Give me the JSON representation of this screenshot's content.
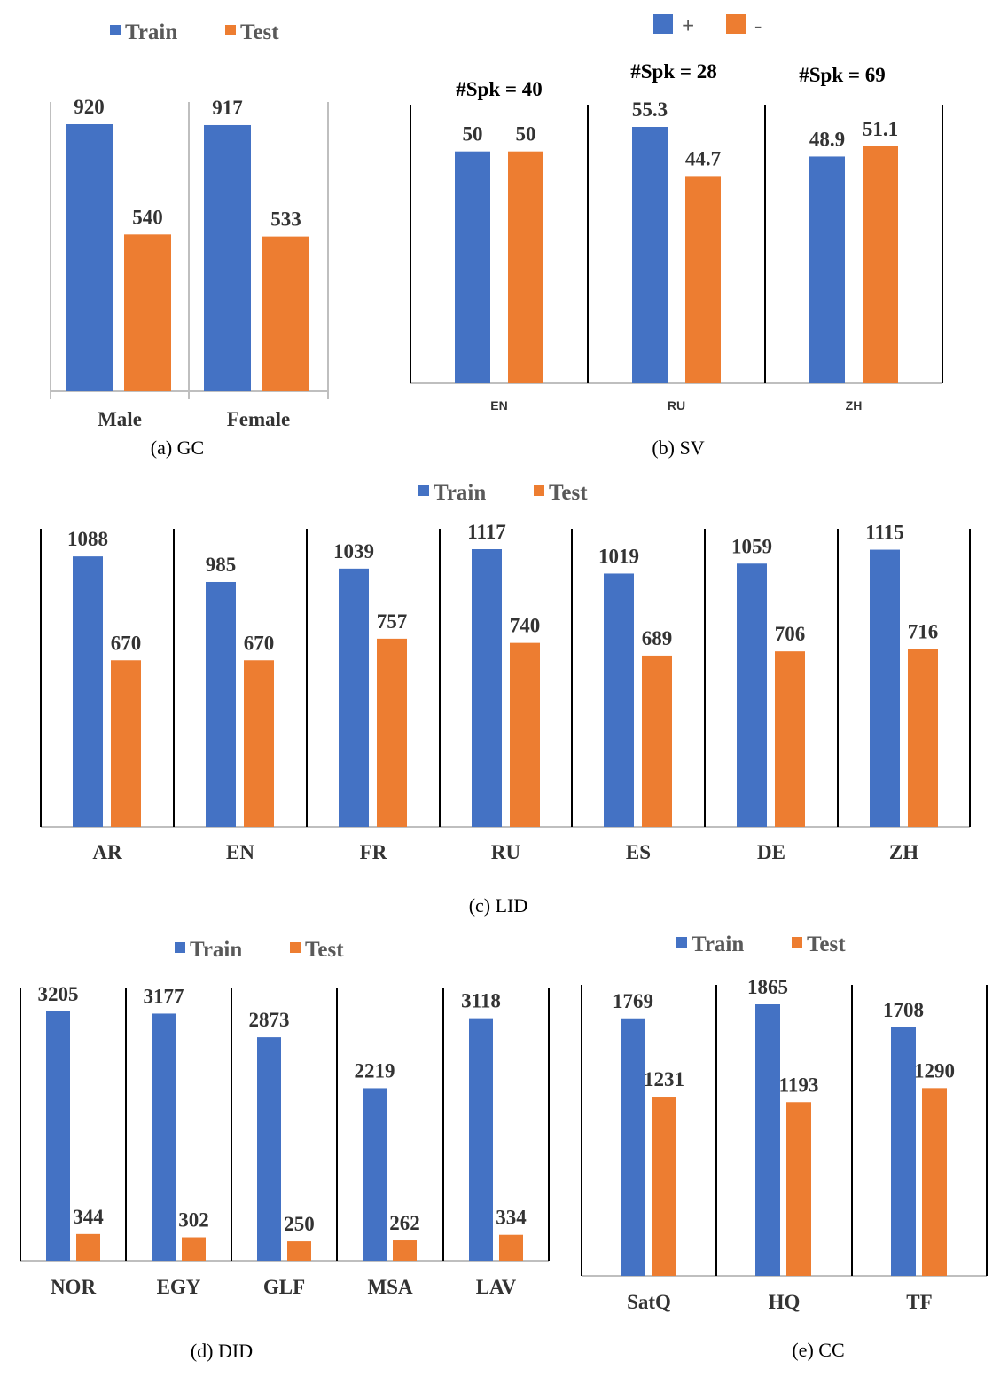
{
  "colors": {
    "train": "#4472C4",
    "test": "#ED7D31",
    "axis": "#000000",
    "text": "#333333"
  },
  "chart_data": [
    {
      "id": "gc",
      "type": "bar",
      "caption": "(a) GC",
      "legend": [
        "Train",
        "Test"
      ],
      "categories": [
        "Male",
        "Female"
      ],
      "series": [
        {
          "name": "Train",
          "values": [
            920,
            917
          ]
        },
        {
          "name": "Test",
          "values": [
            540,
            533
          ]
        }
      ],
      "ylim": [
        0,
        920
      ]
    },
    {
      "id": "sv",
      "type": "bar",
      "caption": "(b) SV",
      "legend": [
        "+",
        "-"
      ],
      "categories": [
        "EN",
        "RU",
        "ZH"
      ],
      "annotations": [
        "#Spk = 40",
        "#Spk = 28",
        "#Spk = 69"
      ],
      "series": [
        {
          "name": "+",
          "values": [
            50,
            55.3,
            48.9
          ]
        },
        {
          "name": "-",
          "values": [
            50,
            44.7,
            51.1
          ]
        }
      ],
      "ylim": [
        0,
        55.3
      ]
    },
    {
      "id": "lid",
      "type": "bar",
      "caption": "(c) LID",
      "legend": [
        "Train",
        "Test"
      ],
      "categories": [
        "AR",
        "EN",
        "FR",
        "RU",
        "ES",
        "DE",
        "ZH"
      ],
      "series": [
        {
          "name": "Train",
          "values": [
            1088,
            985,
            1039,
            1117,
            1019,
            1059,
            1115
          ]
        },
        {
          "name": "Test",
          "values": [
            670,
            670,
            757,
            740,
            689,
            706,
            716
          ]
        }
      ],
      "ylim": [
        0,
        1117
      ]
    },
    {
      "id": "did",
      "type": "bar",
      "caption": "(d) DID",
      "legend": [
        "Train",
        "Test"
      ],
      "categories": [
        "NOR",
        "EGY",
        "GLF",
        "MSA",
        "LAV"
      ],
      "series": [
        {
          "name": "Train",
          "values": [
            3205,
            3177,
            2873,
            2219,
            3118
          ]
        },
        {
          "name": "Test",
          "values": [
            344,
            302,
            250,
            262,
            334
          ]
        }
      ],
      "ylim": [
        0,
        3205
      ]
    },
    {
      "id": "cc",
      "type": "bar",
      "caption": "(e) CC",
      "legend": [
        "Train",
        "Test"
      ],
      "categories": [
        "SatQ",
        "HQ",
        "TF"
      ],
      "series": [
        {
          "name": "Train",
          "values": [
            1769,
            1865,
            1708
          ]
        },
        {
          "name": "Test",
          "values": [
            1231,
            1193,
            1290
          ]
        }
      ],
      "ylim": [
        0,
        1865
      ]
    }
  ]
}
